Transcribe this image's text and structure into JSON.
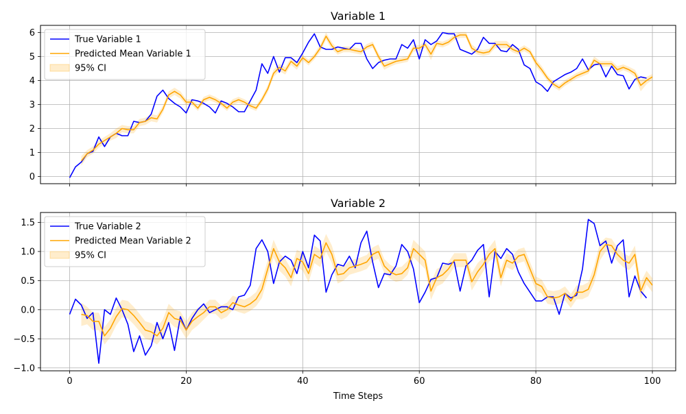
{
  "chart_data": [
    {
      "type": "line",
      "title": "Variable 1",
      "xlabel": "",
      "ylabel": "",
      "xlim": [
        -5,
        104
      ],
      "ylim": [
        -0.3,
        6.3
      ],
      "xticks": [
        0,
        20,
        40,
        60,
        80,
        100
      ],
      "yticks": [
        0,
        1,
        2,
        3,
        4,
        5,
        6
      ],
      "grid": true,
      "legend_location": "upper left",
      "series": [
        {
          "name": "True Variable 1",
          "color": "#0000ff",
          "x_start": 0,
          "values": [
            -0.05,
            0.4,
            0.6,
            0.95,
            1.05,
            1.65,
            1.25,
            1.65,
            1.8,
            1.7,
            1.7,
            2.3,
            2.25,
            2.3,
            2.6,
            3.35,
            3.6,
            3.25,
            3.05,
            2.9,
            2.65,
            3.2,
            3.15,
            3.05,
            2.9,
            2.65,
            3.15,
            3.05,
            2.9,
            2.7,
            2.7,
            3.15,
            3.6,
            4.7,
            4.3,
            5.0,
            4.35,
            4.95,
            4.95,
            4.75,
            5.15,
            5.6,
            5.95,
            5.4,
            5.3,
            5.3,
            5.4,
            5.35,
            5.3,
            5.55,
            5.55,
            4.9,
            4.5,
            4.75,
            4.85,
            4.9,
            4.9,
            5.5,
            5.35,
            5.7,
            4.9,
            5.7,
            5.5,
            5.65,
            6.0,
            5.95,
            5.95,
            5.3,
            5.2,
            5.1,
            5.3,
            5.8,
            5.55,
            5.55,
            5.25,
            5.2,
            5.5,
            5.3,
            4.65,
            4.5,
            3.95,
            3.8,
            3.55,
            3.95,
            4.1,
            4.25,
            4.35,
            4.5,
            4.9,
            4.45,
            4.65,
            4.7,
            4.15,
            4.6,
            4.25,
            4.2,
            3.65,
            4.05,
            4.15,
            4.1
          ]
        },
        {
          "name": "Predicted Mean Variable 1",
          "color": "#ffa500",
          "x_start": 2,
          "values": [
            0.65,
            0.95,
            1.1,
            1.35,
            1.5,
            1.65,
            1.8,
            2.0,
            1.95,
            1.95,
            2.25,
            2.3,
            2.45,
            2.4,
            2.8,
            3.4,
            3.55,
            3.4,
            3.1,
            3.1,
            2.85,
            3.2,
            3.3,
            3.2,
            3.05,
            2.85,
            3.1,
            3.2,
            3.1,
            2.95,
            2.85,
            3.2,
            3.65,
            4.3,
            4.55,
            4.4,
            4.8,
            4.6,
            4.95,
            4.75,
            5.0,
            5.35,
            5.85,
            5.45,
            5.2,
            5.3,
            5.3,
            5.25,
            5.2,
            5.4,
            5.5,
            5.0,
            4.6,
            4.7,
            4.8,
            4.85,
            4.9,
            5.35,
            5.35,
            5.5,
            5.1,
            5.55,
            5.5,
            5.6,
            5.8,
            5.9,
            5.9,
            5.35,
            5.2,
            5.15,
            5.2,
            5.5,
            5.5,
            5.5,
            5.3,
            5.2,
            5.35,
            5.2,
            4.75,
            4.45,
            4.1,
            3.85,
            3.7,
            3.9,
            4.05,
            4.2,
            4.3,
            4.4,
            4.85,
            4.7,
            4.7,
            4.7,
            4.45,
            4.55,
            4.45,
            4.3,
            3.8,
            4.0,
            4.15
          ]
        }
      ],
      "ci": {
        "name": "95% CI",
        "color": "#ffa500",
        "x_start": 2,
        "half_width": [
          0.2,
          0.15,
          0.15,
          0.15,
          0.15,
          0.15,
          0.2,
          0.15,
          0.15,
          0.15,
          0.15,
          0.15,
          0.15,
          0.15,
          0.15,
          0.15,
          0.15,
          0.15,
          0.12,
          0.12,
          0.12,
          0.12,
          0.12,
          0.12,
          0.12,
          0.12,
          0.12,
          0.12,
          0.12,
          0.12,
          0.12,
          0.12,
          0.15,
          0.15,
          0.15,
          0.15,
          0.15,
          0.15,
          0.12,
          0.12,
          0.12,
          0.15,
          0.15,
          0.15,
          0.12,
          0.12,
          0.12,
          0.12,
          0.12,
          0.12,
          0.12,
          0.15,
          0.15,
          0.12,
          0.12,
          0.12,
          0.12,
          0.15,
          0.12,
          0.12,
          0.25,
          0.12,
          0.12,
          0.12,
          0.12,
          0.12,
          0.12,
          0.15,
          0.12,
          0.12,
          0.12,
          0.15,
          0.15,
          0.15,
          0.12,
          0.12,
          0.12,
          0.12,
          0.15,
          0.15,
          0.12,
          0.12,
          0.12,
          0.12,
          0.12,
          0.12,
          0.12,
          0.12,
          0.15,
          0.12,
          0.12,
          0.12,
          0.15,
          0.12,
          0.12,
          0.15,
          0.25,
          0.15,
          0.12
        ]
      }
    },
    {
      "type": "line",
      "title": "Variable 2",
      "xlabel": "Time Steps",
      "ylabel": "",
      "xlim": [
        -5,
        104
      ],
      "ylim": [
        -1.05,
        1.67
      ],
      "xticks": [
        0,
        20,
        40,
        60,
        80,
        100
      ],
      "yticks": [
        -1.0,
        -0.5,
        0.0,
        0.5,
        1.0,
        1.5
      ],
      "grid": true,
      "legend_location": "upper left",
      "series": [
        {
          "name": "True Variable 2",
          "color": "#0000ff",
          "x_start": 0,
          "values": [
            -0.08,
            0.18,
            0.08,
            -0.15,
            -0.05,
            -0.92,
            0.0,
            -0.08,
            0.2,
            0.0,
            -0.25,
            -0.72,
            -0.45,
            -0.78,
            -0.62,
            -0.22,
            -0.5,
            -0.22,
            -0.7,
            -0.12,
            -0.35,
            -0.15,
            0.0,
            0.1,
            -0.05,
            0.0,
            0.05,
            0.05,
            0.0,
            0.22,
            0.25,
            0.42,
            1.05,
            1.2,
            1.0,
            0.45,
            0.82,
            0.92,
            0.85,
            0.62,
            1.0,
            0.72,
            1.28,
            1.18,
            0.3,
            0.6,
            0.78,
            0.75,
            0.92,
            0.72,
            1.15,
            1.35,
            0.82,
            0.38,
            0.62,
            0.6,
            0.75,
            1.12,
            1.0,
            0.7,
            0.12,
            0.3,
            0.52,
            0.55,
            0.8,
            0.78,
            0.82,
            0.32,
            0.75,
            0.85,
            1.02,
            1.12,
            0.22,
            1.0,
            0.88,
            1.05,
            0.95,
            0.65,
            0.45,
            0.3,
            0.15,
            0.15,
            0.22,
            0.22,
            -0.08,
            0.28,
            0.2,
            0.25,
            0.7,
            1.55,
            1.48,
            1.1,
            1.18,
            0.8,
            1.1,
            1.2,
            0.22,
            0.58,
            0.32,
            0.2
          ]
        },
        {
          "name": "Predicted Mean Variable 2",
          "color": "#ffa500",
          "x_start": 2,
          "values": [
            -0.08,
            -0.1,
            -0.2,
            -0.2,
            -0.45,
            -0.32,
            -0.12,
            0.02,
            0.0,
            -0.1,
            -0.22,
            -0.35,
            -0.38,
            -0.45,
            -0.32,
            -0.05,
            -0.15,
            -0.18,
            -0.35,
            -0.2,
            -0.12,
            -0.05,
            0.05,
            0.05,
            -0.05,
            0.0,
            0.12,
            0.08,
            0.05,
            0.1,
            0.18,
            0.35,
            0.7,
            1.05,
            0.82,
            0.72,
            0.55,
            0.88,
            0.82,
            0.62,
            0.95,
            0.88,
            1.15,
            0.95,
            0.6,
            0.62,
            0.72,
            0.75,
            0.78,
            0.82,
            0.95,
            1.0,
            0.75,
            0.65,
            0.6,
            0.62,
            0.72,
            1.05,
            0.95,
            0.85,
            0.32,
            0.55,
            0.6,
            0.7,
            0.85,
            0.85,
            0.85,
            0.48,
            0.65,
            0.78,
            0.95,
            1.05,
            0.55,
            0.85,
            0.8,
            0.92,
            0.95,
            0.7,
            0.45,
            0.4,
            0.22,
            0.2,
            0.22,
            0.28,
            0.15,
            0.3,
            0.3,
            0.35,
            0.6,
            1.0,
            1.12,
            1.1,
            0.95,
            0.85,
            0.8,
            0.95,
            0.32,
            0.55,
            0.42
          ]
        }
      ],
      "ci": {
        "name": "95% CI",
        "color": "#ffa500",
        "x_start": 2,
        "half_width": [
          0.2,
          0.15,
          0.15,
          0.15,
          0.15,
          0.15,
          0.15,
          0.15,
          0.15,
          0.15,
          0.15,
          0.15,
          0.15,
          0.15,
          0.15,
          0.15,
          0.15,
          0.15,
          0.15,
          0.15,
          0.15,
          0.12,
          0.12,
          0.12,
          0.12,
          0.12,
          0.12,
          0.12,
          0.12,
          0.12,
          0.12,
          0.15,
          0.15,
          0.15,
          0.15,
          0.15,
          0.15,
          0.15,
          0.15,
          0.15,
          0.15,
          0.15,
          0.15,
          0.15,
          0.15,
          0.12,
          0.12,
          0.12,
          0.12,
          0.12,
          0.12,
          0.12,
          0.12,
          0.12,
          0.12,
          0.12,
          0.12,
          0.15,
          0.15,
          0.15,
          0.15,
          0.15,
          0.15,
          0.12,
          0.12,
          0.12,
          0.12,
          0.15,
          0.15,
          0.12,
          0.12,
          0.15,
          0.15,
          0.12,
          0.12,
          0.12,
          0.12,
          0.12,
          0.12,
          0.12,
          0.12,
          0.12,
          0.12,
          0.12,
          0.12,
          0.12,
          0.12,
          0.12,
          0.15,
          0.15,
          0.12,
          0.12,
          0.12,
          0.12,
          0.12,
          0.15,
          0.15,
          0.12,
          0.12
        ]
      }
    }
  ]
}
